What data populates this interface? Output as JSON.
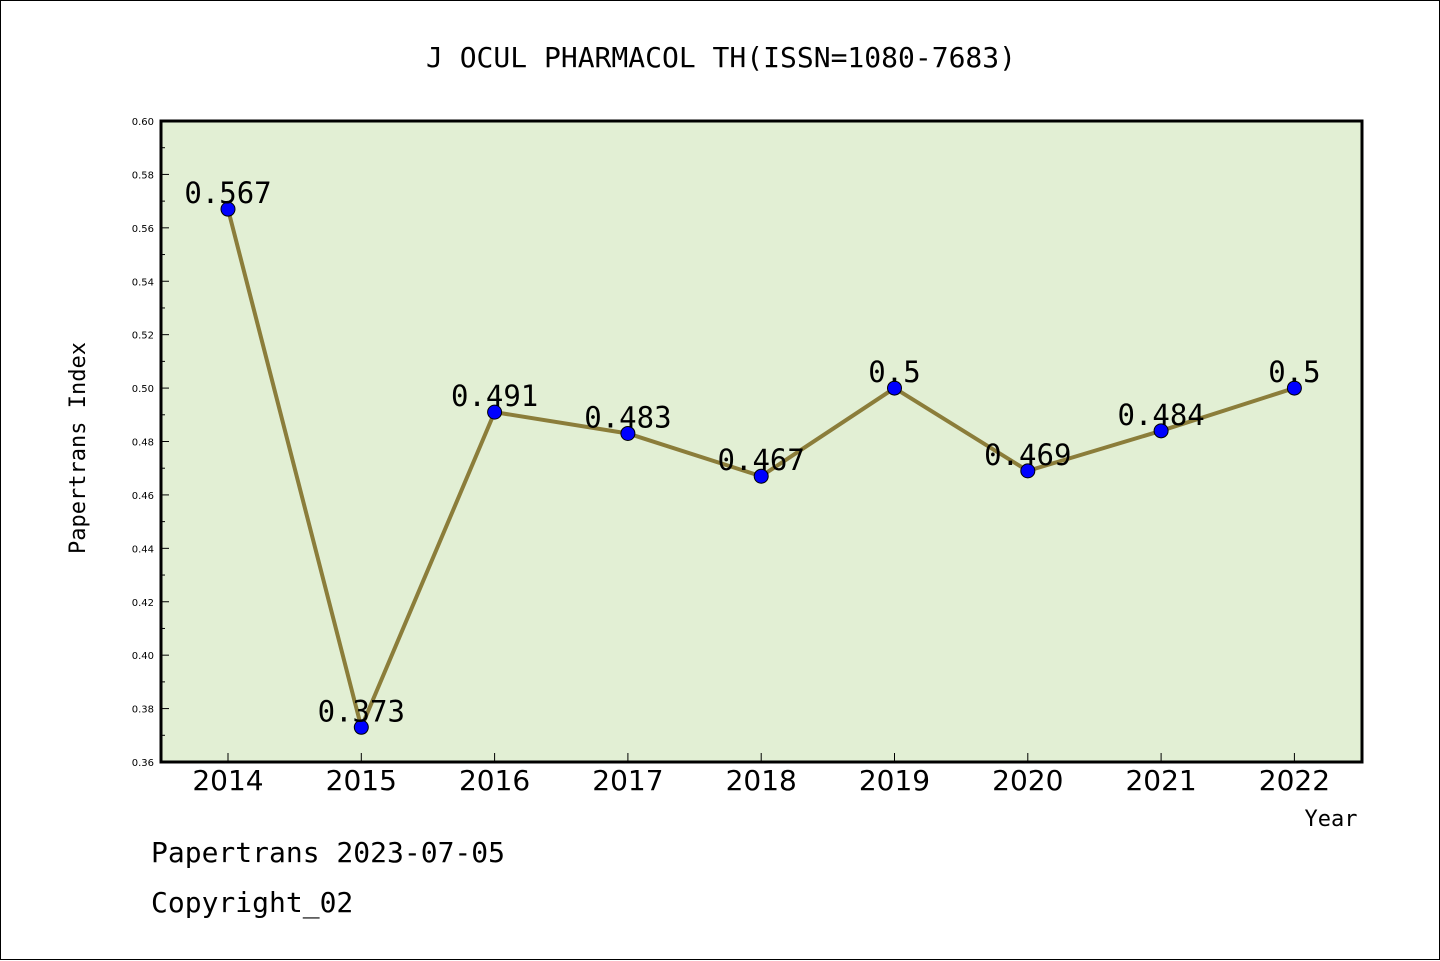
{
  "chart_data": {
    "type": "line",
    "title": "J OCUL PHARMACOL TH(ISSN=1080-7683)",
    "xlabel": "Year",
    "ylabel": "Papertrans Index",
    "categories": [
      "2014",
      "2015",
      "2016",
      "2017",
      "2018",
      "2019",
      "2020",
      "2021",
      "2022"
    ],
    "values": [
      0.567,
      0.373,
      0.491,
      0.483,
      0.467,
      0.5,
      0.469,
      0.484,
      0.5
    ],
    "data_labels": [
      "0.567",
      "0.373",
      "0.491",
      "0.483",
      "0.467",
      "0.5",
      "0.469",
      "0.484",
      "0.5"
    ],
    "ylim": [
      0.36,
      0.6
    ],
    "yticks": [
      "0.36",
      "0.38",
      "0.40",
      "0.42",
      "0.44",
      "0.46",
      "0.48",
      "0.50",
      "0.52",
      "0.54",
      "0.56",
      "0.58",
      "0.60"
    ],
    "grid": false,
    "colors": {
      "plot_background": "#e2efd4",
      "line": "#8b7d3a",
      "marker": "#0000ff"
    }
  },
  "footer": {
    "line1": "Papertrans 2023-07-05",
    "line2": "Copyright_02"
  }
}
